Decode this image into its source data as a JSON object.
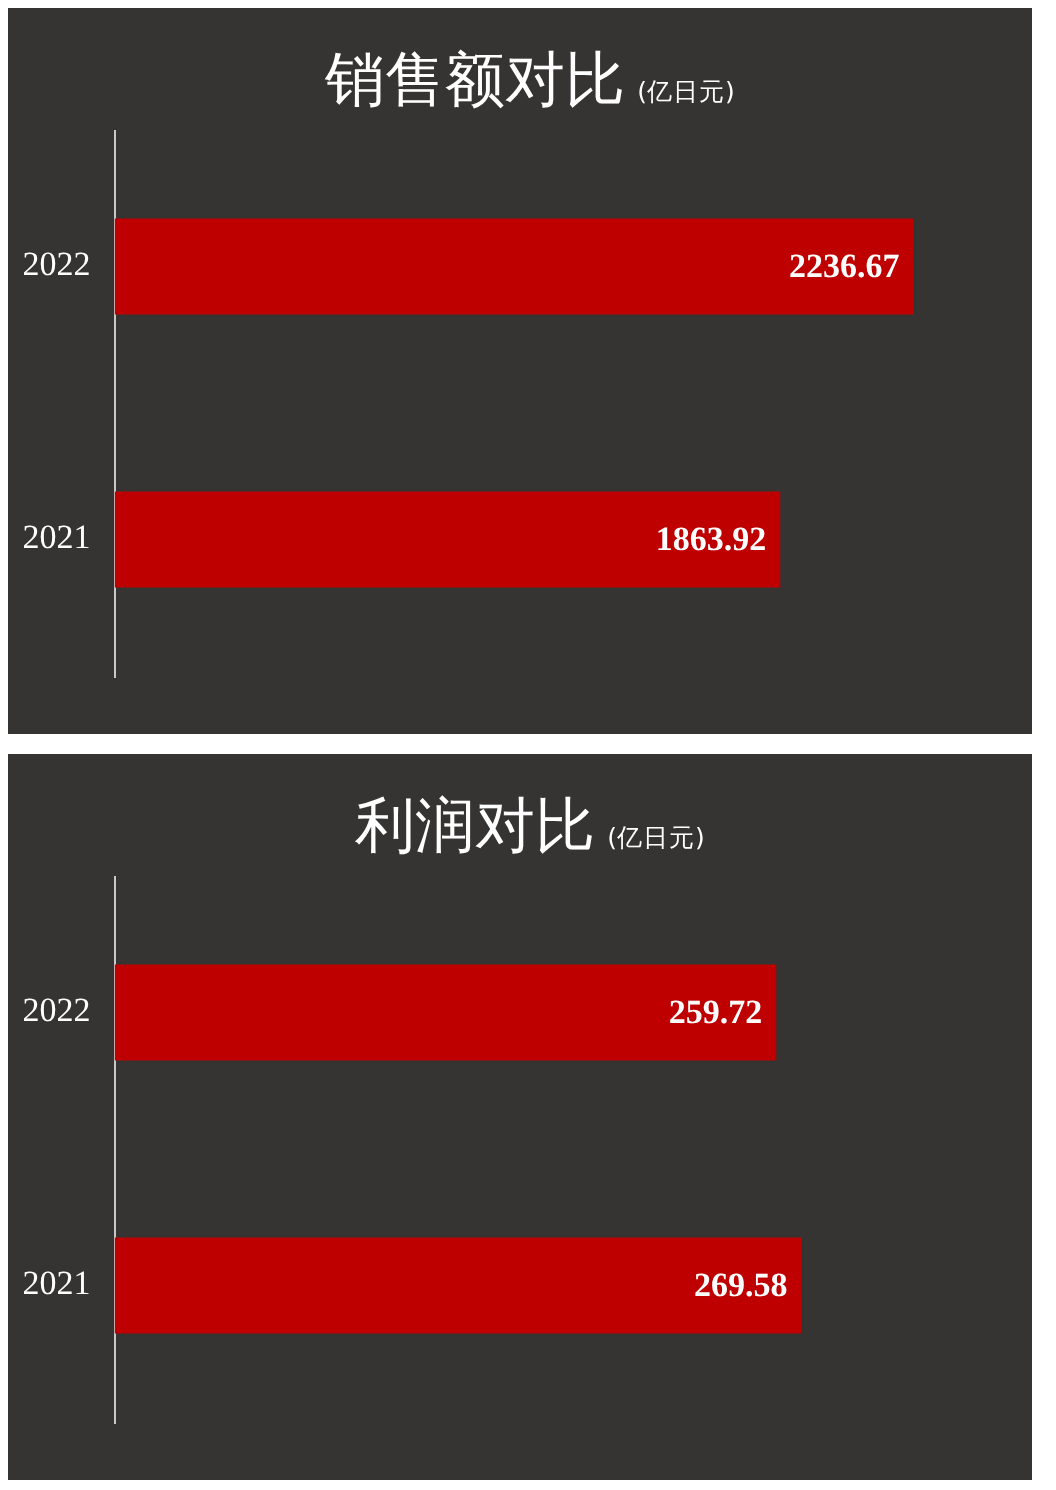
{
  "chart_data": [
    {
      "type": "bar",
      "orientation": "horizontal",
      "title": "销售额对比",
      "subtitle": "(亿日元)",
      "categories": [
        "2022",
        "2021"
      ],
      "values": [
        2236.67,
        1863.92
      ],
      "color": "#bf0000",
      "data_labels": true,
      "tick_labels": "y"
    },
    {
      "type": "bar",
      "orientation": "horizontal",
      "title": "利润对比",
      "subtitle": "(亿日元)",
      "categories": [
        "2022",
        "2021"
      ],
      "values": [
        259.72,
        269.58
      ],
      "color": "#bf0000",
      "data_labels": true,
      "tick_labels": "y"
    }
  ]
}
